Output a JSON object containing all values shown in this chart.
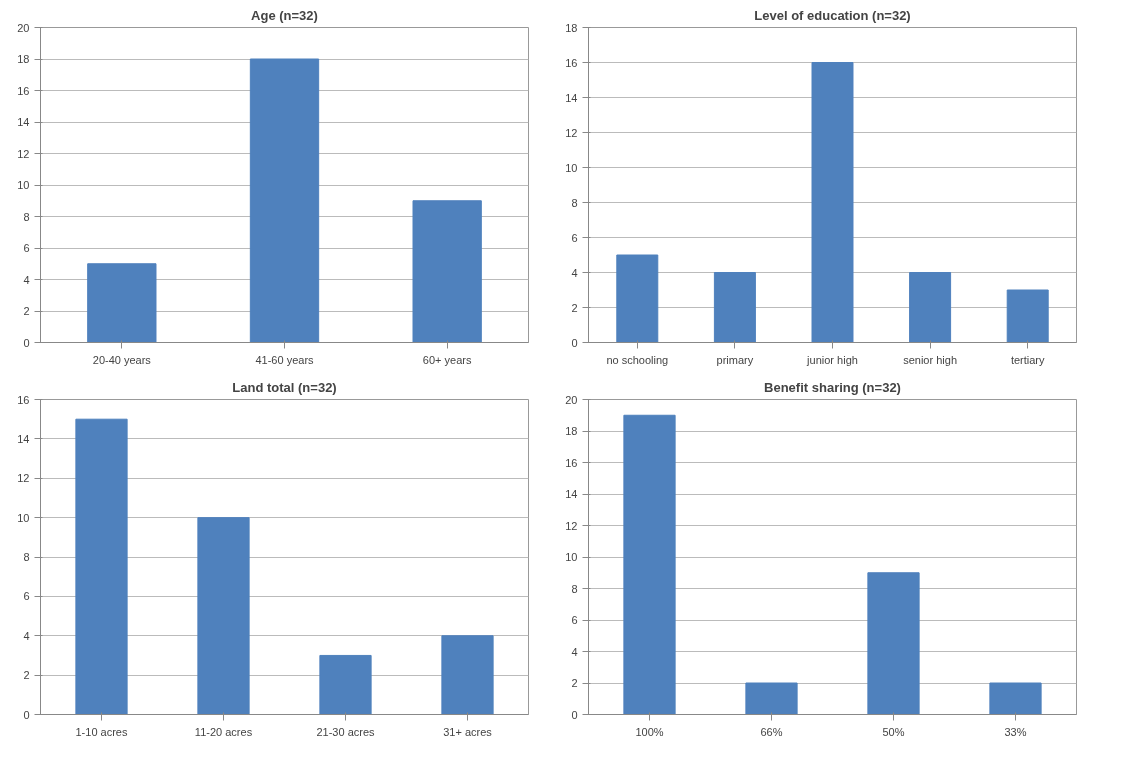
{
  "chart_data": [
    {
      "type": "bar",
      "title": "Age (n=32)",
      "categories": [
        "20-40 years",
        "41-60 years",
        "60+ years"
      ],
      "values": [
        5,
        18,
        9
      ],
      "color": "#4f81bd",
      "ylim": [
        0,
        20
      ],
      "yticks": [
        0,
        2,
        4,
        6,
        8,
        10,
        12,
        14,
        16,
        18,
        20
      ],
      "grid": "y"
    },
    {
      "type": "bar",
      "title": "Level of education (n=32)",
      "categories": [
        "no schooling",
        "primary",
        "junior high",
        "senior high",
        "tertiary"
      ],
      "values": [
        5,
        4,
        16,
        4,
        3
      ],
      "color": "#4f81bd",
      "ylim": [
        0,
        18
      ],
      "yticks": [
        0,
        2,
        4,
        6,
        8,
        10,
        12,
        14,
        16,
        18
      ],
      "grid": "y"
    },
    {
      "type": "bar",
      "title": "Land total (n=32)",
      "categories": [
        "1-10 acres",
        "11-20 acres",
        "21-30 acres",
        "31+ acres"
      ],
      "values": [
        15,
        10,
        3,
        4
      ],
      "color": "#4f81bd",
      "ylim": [
        0,
        16
      ],
      "yticks": [
        0,
        2,
        4,
        6,
        8,
        10,
        12,
        14,
        16
      ],
      "grid": "y"
    },
    {
      "type": "bar",
      "title": "Benefit sharing (n=32)",
      "categories": [
        "100%",
        "66%",
        "50%",
        "33%"
      ],
      "values": [
        19,
        2,
        9,
        2
      ],
      "color": "#4f81bd",
      "ylim": [
        0,
        20
      ],
      "yticks": [
        0,
        2,
        4,
        6,
        8,
        10,
        12,
        14,
        16,
        18,
        20
      ],
      "grid": "y"
    }
  ]
}
